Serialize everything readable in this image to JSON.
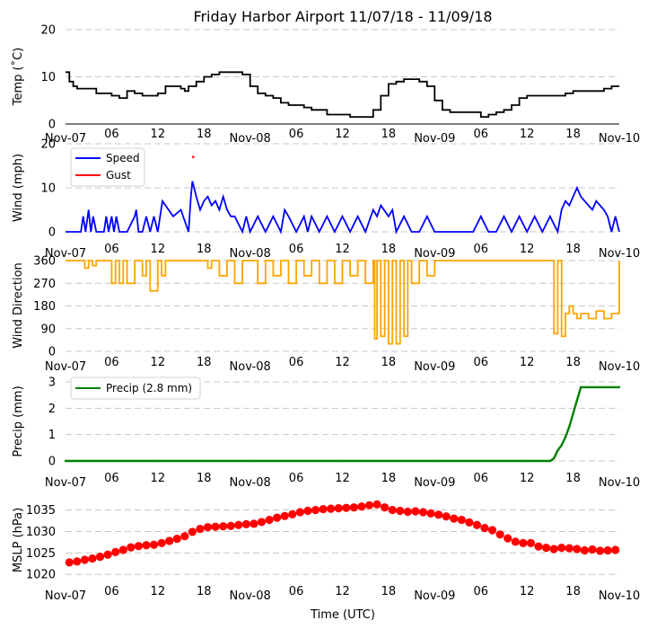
{
  "title": "Friday Harbor Airport 11/07/18 - 11/09/18",
  "xlabel": "Time (UTC)",
  "x_ticks": [
    "Nov-07",
    "06",
    "12",
    "18",
    "Nov-08",
    "06",
    "12",
    "18",
    "Nov-09",
    "06",
    "12",
    "18",
    "Nov-10"
  ],
  "x_range_hours": [
    0,
    72
  ],
  "colors": {
    "temp": "#000000",
    "speed": "#0000ff",
    "gust": "#ff0000",
    "direction": "#ffa500",
    "precip": "#008000",
    "mslp": "#ff0000",
    "grid": "#c8c8c8"
  },
  "chart_data": [
    {
      "type": "line",
      "panel": "temperature",
      "ylabel": "Temp ($^\\circ$C)",
      "ylabel_display": "Temp (˚C)",
      "ylim": [
        0,
        20
      ],
      "yticks": [
        "0",
        "10",
        "20"
      ],
      "x_hours": [
        0,
        0.5,
        1,
        1.5,
        2,
        3,
        4,
        5,
        6,
        7,
        8,
        9,
        10,
        11,
        12,
        13,
        14,
        15,
        15.5,
        16,
        17,
        18,
        19,
        20,
        21,
        22,
        23,
        24,
        25,
        26,
        27,
        28,
        29,
        30,
        31,
        32,
        33,
        34,
        35,
        36,
        37,
        38,
        39,
        40,
        41,
        42,
        43,
        44,
        45,
        46,
        47,
        48,
        49,
        50,
        51,
        52,
        53,
        54,
        55,
        56,
        57,
        58,
        59,
        60,
        61,
        62,
        63,
        64,
        65,
        66,
        67,
        68,
        69,
        70,
        71,
        72
      ],
      "values": [
        11,
        9,
        8,
        7.5,
        7.5,
        7.5,
        6.5,
        6.5,
        6,
        5.5,
        7,
        6.5,
        6,
        6,
        6.5,
        8,
        8,
        7.5,
        7,
        8,
        9,
        10,
        10.5,
        11,
        11,
        11,
        10.5,
        8,
        6.5,
        6,
        5.5,
        4.5,
        4,
        4,
        3.5,
        3,
        3,
        2,
        2,
        2,
        1.5,
        1.5,
        1.5,
        3,
        6,
        8.5,
        9,
        9.5,
        9.5,
        9,
        8,
        5,
        3,
        2.5,
        2.5,
        2.5,
        2.5,
        1.5,
        2,
        2.5,
        3,
        4,
        5.5,
        6,
        6,
        6,
        6,
        6,
        6.5,
        7,
        7,
        7,
        7,
        7.5,
        8,
        8
      ]
    },
    {
      "type": "line",
      "panel": "wind_speed",
      "ylabel": "Wind (mph)",
      "ylim": [
        0,
        20
      ],
      "yticks": [
        "0",
        "10",
        "20"
      ],
      "legend": [
        "Speed",
        "Gust"
      ],
      "series": [
        {
          "name": "Speed",
          "x_hours": [
            0,
            2,
            2.3,
            2.6,
            3,
            3.3,
            3.6,
            4,
            5,
            5.3,
            5.6,
            6,
            6.3,
            6.6,
            7,
            8,
            9,
            9.2,
            9.5,
            10,
            10.5,
            11,
            11.5,
            12,
            12.3,
            12.6,
            13,
            14,
            15,
            16,
            16.3,
            16.5,
            17,
            17.5,
            18,
            18.5,
            19,
            19.5,
            20,
            20.5,
            21,
            21.5,
            22,
            23,
            23.5,
            24,
            25,
            26,
            27,
            28,
            28.5,
            29,
            30,
            31,
            31.5,
            32,
            33,
            34,
            35,
            36,
            37,
            38,
            39,
            40,
            40.5,
            41,
            42,
            42.5,
            43,
            44,
            45,
            46,
            47,
            48,
            49,
            50,
            51,
            52,
            53,
            54,
            55,
            56,
            57,
            58,
            59,
            60,
            61,
            62,
            63,
            64,
            64.5,
            65,
            65.5,
            66,
            66.5,
            67,
            67.5,
            68,
            68.5,
            69,
            69.5,
            70,
            70.5,
            71,
            71.5,
            72
          ],
          "values": [
            0,
            0,
            3.5,
            0,
            5,
            0,
            3.5,
            0,
            0,
            3.5,
            0,
            3.5,
            0,
            3.5,
            0,
            0,
            3.5,
            5,
            0,
            0,
            3.5,
            0,
            3.5,
            0,
            3.5,
            7,
            6,
            3.5,
            5,
            0,
            8,
            11.5,
            8,
            5,
            7,
            8,
            6,
            7,
            5,
            8,
            5,
            3.5,
            3.5,
            0,
            3.5,
            0,
            3.5,
            0,
            3.5,
            0,
            5,
            3.5,
            0,
            3.5,
            0,
            3.5,
            0,
            3.5,
            0,
            3.5,
            0,
            3.5,
            0,
            5,
            3.5,
            6,
            3.5,
            5,
            0,
            3.5,
            0,
            0,
            3.5,
            0,
            0,
            0,
            0,
            0,
            0,
            3.5,
            0,
            0,
            3.5,
            0,
            3.5,
            0,
            3.5,
            0,
            3.5,
            0,
            5,
            7,
            6,
            8,
            10,
            8,
            7,
            6,
            5,
            7,
            6,
            5,
            3.5,
            0,
            3.5,
            0
          ]
        },
        {
          "name": "Gust",
          "x_hours": [
            16.6
          ],
          "values": [
            17
          ]
        }
      ]
    },
    {
      "type": "line",
      "panel": "wind_direction",
      "ylabel": "Wind Direction",
      "ylim": [
        0,
        360
      ],
      "yticks": [
        "0",
        "90",
        "180",
        "270",
        "360"
      ],
      "x_hours": [
        0,
        1,
        2,
        2.5,
        3,
        3.5,
        4,
        5,
        6,
        6.5,
        7,
        7.5,
        8,
        9,
        10,
        10.5,
        11,
        12,
        12.5,
        13,
        14,
        15,
        16,
        17,
        18,
        18.5,
        19,
        20,
        21,
        22,
        23,
        24,
        25,
        26,
        27,
        28,
        29,
        30,
        31,
        32,
        33,
        34,
        35,
        36,
        37,
        38,
        39,
        40,
        40.2,
        40.5,
        41,
        41.5,
        42,
        42.5,
        43,
        43.5,
        44,
        44.5,
        45,
        46,
        47,
        48,
        50,
        52,
        54,
        56,
        58,
        60,
        61,
        62,
        63,
        63.5,
        64,
        64.5,
        65,
        65.5,
        66,
        66.5,
        67,
        68,
        69,
        70,
        71,
        72
      ],
      "values": [
        360,
        360,
        360,
        330,
        360,
        340,
        360,
        360,
        270,
        360,
        270,
        360,
        270,
        360,
        300,
        360,
        240,
        360,
        300,
        360,
        360,
        360,
        360,
        360,
        360,
        330,
        360,
        300,
        360,
        270,
        360,
        360,
        270,
        360,
        300,
        360,
        270,
        360,
        300,
        360,
        270,
        360,
        270,
        360,
        300,
        360,
        270,
        360,
        50,
        360,
        60,
        360,
        30,
        360,
        30,
        360,
        60,
        360,
        270,
        360,
        300,
        360,
        360,
        360,
        360,
        360,
        360,
        360,
        360,
        360,
        360,
        70,
        360,
        60,
        150,
        180,
        150,
        130,
        150,
        130,
        160,
        130,
        150,
        360
      ]
    },
    {
      "type": "line",
      "panel": "precipitation",
      "ylabel": "Precip (mm)",
      "ylim": [
        0,
        3
      ],
      "yticks": [
        "0",
        "1",
        "2",
        "3"
      ],
      "legend": [
        "Precip (2.8 mm)"
      ],
      "x_hours": [
        0,
        12,
        24,
        36,
        48,
        60,
        63,
        63.5,
        64,
        64.5,
        65,
        65.5,
        66,
        66.5,
        67,
        72
      ],
      "values": [
        0,
        0,
        0,
        0,
        0,
        0,
        0,
        0.1,
        0.4,
        0.6,
        0.9,
        1.3,
        1.8,
        2.3,
        2.8,
        2.8
      ]
    },
    {
      "type": "scatter",
      "panel": "mslp",
      "ylabel": "MSLP (hPa)",
      "ylim": [
        1019,
        1037
      ],
      "yticks": [
        "1020",
        "1025",
        "1030",
        "1035"
      ],
      "x_hours": [
        0.5,
        1.5,
        2.5,
        3.5,
        4.5,
        5.5,
        6.5,
        7.5,
        8.5,
        9.5,
        10.5,
        11.5,
        12.5,
        13.5,
        14.5,
        15.5,
        16.5,
        17.5,
        18.5,
        19.5,
        20.5,
        21.5,
        22.5,
        23.5,
        24.5,
        25.5,
        26.5,
        27.5,
        28.5,
        29.5,
        30.5,
        31.5,
        32.5,
        33.5,
        34.5,
        35.5,
        36.5,
        37.5,
        38.5,
        39.5,
        40.5,
        41.5,
        42.5,
        43.5,
        44.5,
        45.5,
        46.5,
        47.5,
        48.5,
        49.5,
        50.5,
        51.5,
        52.5,
        53.5,
        54.5,
        55.5,
        56.5,
        57.5,
        58.5,
        59.5,
        60.5,
        61.5,
        62.5,
        63.5,
        64.5,
        65.5,
        66.5,
        67.5,
        68.5,
        69.5,
        70.5,
        71.5
      ],
      "values": [
        1022.8,
        1023.0,
        1023.4,
        1023.7,
        1024.1,
        1024.6,
        1025.2,
        1025.7,
        1026.3,
        1026.6,
        1026.8,
        1026.9,
        1027.3,
        1027.8,
        1028.3,
        1028.9,
        1029.9,
        1030.6,
        1031.0,
        1031.1,
        1031.2,
        1031.3,
        1031.5,
        1031.7,
        1031.8,
        1032.2,
        1032.7,
        1033.2,
        1033.6,
        1034.0,
        1034.5,
        1034.8,
        1035.0,
        1035.2,
        1035.3,
        1035.4,
        1035.5,
        1035.6,
        1035.8,
        1036.1,
        1036.3,
        1035.6,
        1035.0,
        1034.8,
        1034.6,
        1034.7,
        1034.5,
        1034.2,
        1033.9,
        1033.5,
        1033.0,
        1032.7,
        1032.1,
        1031.5,
        1030.8,
        1030.3,
        1029.3,
        1028.4,
        1027.6,
        1027.3,
        1027.3,
        1026.5,
        1026.2,
        1025.9,
        1026.2,
        1026.1,
        1025.9,
        1025.6,
        1025.8,
        1025.5,
        1025.6,
        1025.7
      ]
    }
  ]
}
